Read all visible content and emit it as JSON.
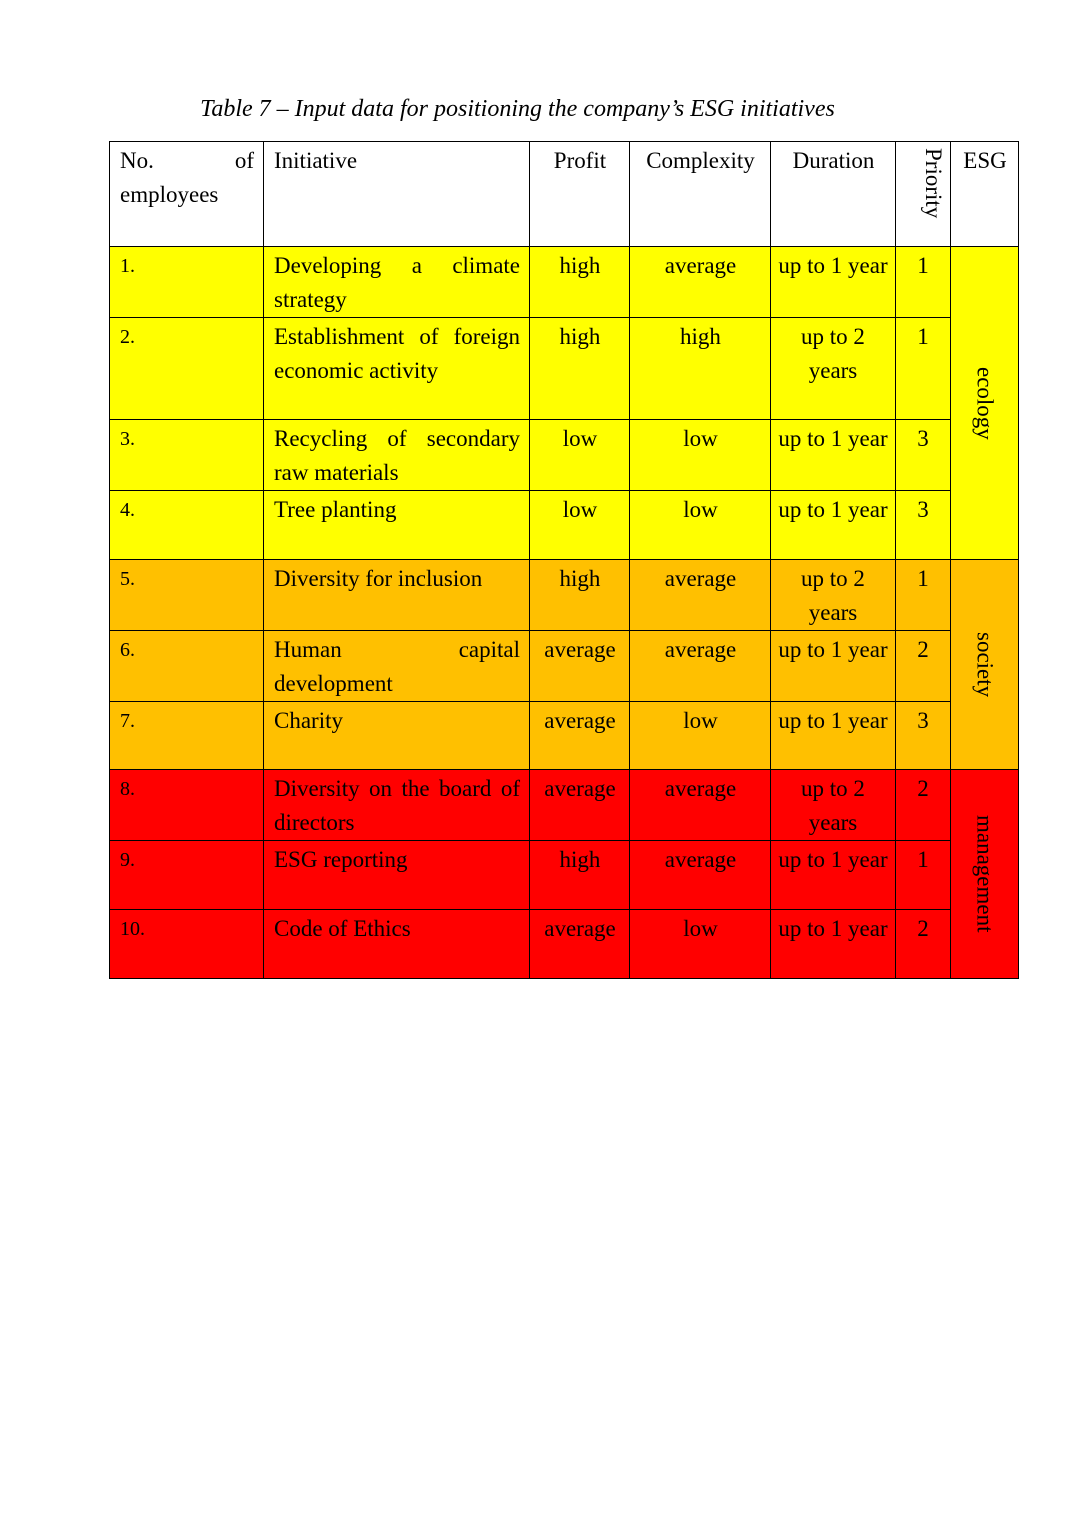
{
  "caption": "Table 7 – Input data for positioning the company’s ESG initiatives",
  "headers": {
    "no": "No. of employees",
    "initiative": "Initiative",
    "profit": "Profit",
    "complexity": "Complexity",
    "duration": "Duration",
    "priority": "Priority",
    "esg": "ESG"
  },
  "colors": {
    "ecology": "#ffff00",
    "society": "#ffc000",
    "management": "#ff0000"
  },
  "groups": [
    {
      "label": "ecology",
      "color": "#ffff00",
      "rows": [
        {
          "no": "1.",
          "initiative": "Developing a climate strategy",
          "profit": "high",
          "complexity": "average",
          "duration": "up to 1 year",
          "priority": "1"
        },
        {
          "no": "2.",
          "initiative": "Establishment of foreign economic activity",
          "profit": "high",
          "complexity": "high",
          "duration": "up to 2 years",
          "priority": "1"
        },
        {
          "no": "3.",
          "initiative": "Recycling of secondary raw materials",
          "profit": "low",
          "complexity": "low",
          "duration": "up to 1 year",
          "priority": "3"
        },
        {
          "no": "4.",
          "initiative": "Tree planting",
          "profit": "low",
          "complexity": "low",
          "duration": "up to 1 year",
          "priority": "3"
        }
      ]
    },
    {
      "label": "society",
      "color": "#ffc000",
      "rows": [
        {
          "no": "5.",
          "initiative": "Diversity for inclusion",
          "profit": "high",
          "complexity": "average",
          "duration": "up to 2 years",
          "priority": "1"
        },
        {
          "no": "6.",
          "initiative": "Human capital development",
          "profit": "average",
          "complexity": "average",
          "duration": "up to 1 year",
          "priority": "2"
        },
        {
          "no": "7.",
          "initiative": "Charity",
          "profit": "average",
          "complexity": "low",
          "duration": "up to 1 year",
          "priority": "3"
        }
      ]
    },
    {
      "label": "management",
      "color": "#ff0000",
      "rows": [
        {
          "no": "8.",
          "initiative": "Diversity on the board of directors",
          "profit": "average",
          "complexity": "average",
          "duration": "up to 2 years",
          "priority": "2"
        },
        {
          "no": "9.",
          "initiative": "ESG reporting",
          "profit": "high",
          "complexity": "average",
          "duration": "up to 1 year",
          "priority": "1"
        },
        {
          "no": "10.",
          "initiative": "Code of Ethics",
          "profit": "average",
          "complexity": "low",
          "duration": "up to 1 year",
          "priority": "2"
        }
      ]
    }
  ]
}
